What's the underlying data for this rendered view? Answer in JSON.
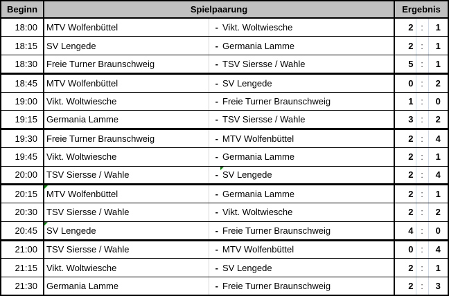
{
  "table": {
    "columns": {
      "time_label": "Beginn",
      "pairing_label": "Spielpaarung",
      "result_label": "Ergebnis"
    },
    "separator": "-",
    "score_divider": ":",
    "rows": [
      {
        "time": "18:00",
        "home": "MTV Wolfenbüttel",
        "away": "Vikt. Woltwiesche",
        "score_home": 2,
        "score_away": 1
      },
      {
        "time": "18:15",
        "home": "SV Lengede",
        "away": "Germania Lamme",
        "score_home": 2,
        "score_away": 1
      },
      {
        "time": "18:30",
        "home": "Freie Turner Braunschweig",
        "away": "TSV Siersse / Wahle",
        "score_home": 5,
        "score_away": 1,
        "group_end": true
      },
      {
        "time": "18:45",
        "home": "MTV Wolfenbüttel",
        "away": "SV Lengede",
        "score_home": 0,
        "score_away": 2
      },
      {
        "time": "19:00",
        "home": "Vikt. Woltwiesche",
        "away": "Freie Turner Braunschweig",
        "score_home": 1,
        "score_away": 0
      },
      {
        "time": "19:15",
        "home": "Germania Lamme",
        "away": "TSV Siersse / Wahle",
        "score_home": 3,
        "score_away": 2,
        "group_end": true
      },
      {
        "time": "19:30",
        "home": "Freie Turner Braunschweig",
        "away": "MTV Wolfenbüttel",
        "score_home": 2,
        "score_away": 4
      },
      {
        "time": "19:45",
        "home": "Vikt. Woltwiesche",
        "away": "Germania Lamme",
        "score_home": 2,
        "score_away": 1
      },
      {
        "time": "20:00",
        "home": "TSV Siersse / Wahle",
        "away": "SV Lengede",
        "score_home": 2,
        "score_away": 4,
        "group_end": true,
        "note": "away"
      },
      {
        "time": "20:15",
        "home": "MTV Wolfenbüttel",
        "away": "Germania Lamme",
        "score_home": 2,
        "score_away": 1,
        "note": "home"
      },
      {
        "time": "20:30",
        "home": "TSV Siersse / Wahle",
        "away": "Vikt. Woltwiesche",
        "score_home": 2,
        "score_away": 2
      },
      {
        "time": "20:45",
        "home": "SV Lengede",
        "away": "Freie Turner Braunschweig",
        "score_home": 4,
        "score_away": 0,
        "group_end": true,
        "note": "home"
      },
      {
        "time": "21:00",
        "home": "TSV Siersse / Wahle",
        "away": "MTV Wolfenbüttel",
        "score_home": 0,
        "score_away": 4
      },
      {
        "time": "21:15",
        "home": "Vikt. Woltwiesche",
        "away": "SV Lengede",
        "score_home": 2,
        "score_away": 1
      },
      {
        "time": "21:30",
        "home": "Germania Lamme",
        "away": "Freie Turner Braunschweig",
        "score_home": 2,
        "score_away": 3
      }
    ],
    "colors": {
      "header_bg": "#c0c0c0",
      "grid_light": "#d0d7e5",
      "border_dark": "#000000",
      "note_marker": "#008000",
      "text": "#000000",
      "cell_bg": "#ffffff"
    }
  }
}
